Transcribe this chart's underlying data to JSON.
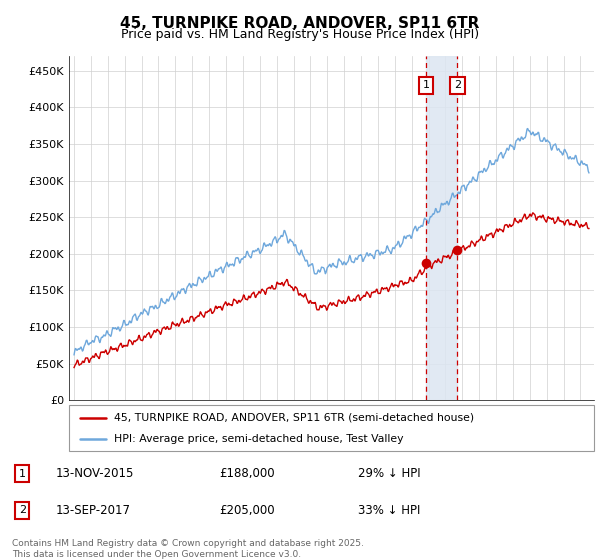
{
  "title": "45, TURNPIKE ROAD, ANDOVER, SP11 6TR",
  "subtitle": "Price paid vs. HM Land Registry's House Price Index (HPI)",
  "ylabel_ticks": [
    "£0",
    "£50K",
    "£100K",
    "£150K",
    "£200K",
    "£250K",
    "£300K",
    "£350K",
    "£400K",
    "£450K"
  ],
  "ytick_values": [
    0,
    50000,
    100000,
    150000,
    200000,
    250000,
    300000,
    350000,
    400000,
    450000
  ],
  "ylim": [
    0,
    470000
  ],
  "xlim_start": 1994.7,
  "xlim_end": 2025.8,
  "hpi_color": "#6fa8dc",
  "price_color": "#cc0000",
  "marker1_date": 2015.87,
  "marker2_date": 2017.71,
  "marker1_price": 188000,
  "marker2_price": 205000,
  "marker1_label": "13-NOV-2015",
  "marker2_label": "13-SEP-2017",
  "marker1_hpi_pct": "29% ↓ HPI",
  "marker2_hpi_pct": "33% ↓ HPI",
  "legend1": "45, TURNPIKE ROAD, ANDOVER, SP11 6TR (semi-detached house)",
  "legend2": "HPI: Average price, semi-detached house, Test Valley",
  "footer": "Contains HM Land Registry data © Crown copyright and database right 2025.\nThis data is licensed under the Open Government Licence v3.0.",
  "shade_color": "#dce6f1",
  "dashed_color": "#cc0000"
}
